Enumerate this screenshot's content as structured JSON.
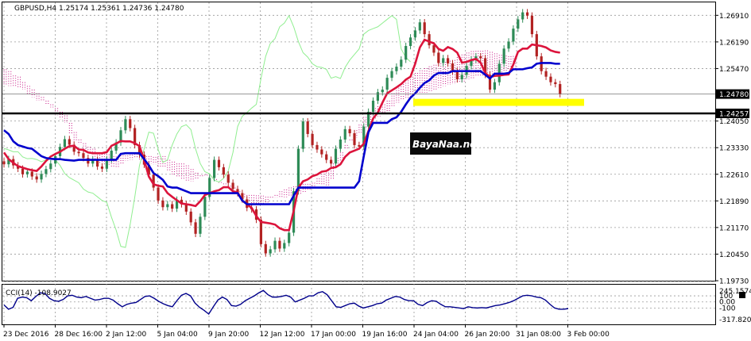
{
  "window": {
    "symbol_line": "GBPUSD,H4  1.25174 1.25361 1.24736 1.24780"
  },
  "watermark": "BayaNaa.net",
  "indicator": {
    "title": "CCI(14) -108.9027",
    "scale_labels": [
      "245.1574",
      "100",
      "0.00",
      "-100",
      "-317.8207"
    ]
  },
  "colors": {
    "background": "#ffffff",
    "grid": "#9a9a9a",
    "bull_candle": "#2e8b57",
    "bear_candle": "#b22222",
    "tenkan": "#dc143c",
    "kijun": "#0000cd",
    "chikou": "#90ee90",
    "kumo": "#c71585",
    "support_zone": "#ffff00",
    "price_tag_bg": "#000000",
    "cci_line": "#00008b"
  },
  "chart_data": {
    "type": "candlestick",
    "title": "GBPUSD,H4",
    "open": 1.25174,
    "high": 1.25361,
    "low": 1.24736,
    "close": 1.2478,
    "y_ticks": [
      "1.26910",
      "1.26190",
      "1.25470",
      "1.24780",
      "1.24257",
      "1.24050",
      "1.23330",
      "1.22610",
      "1.21890",
      "1.21170",
      "1.20450",
      "1.19730"
    ],
    "ylim": [
      1.1973,
      1.2726
    ],
    "x_ticks": [
      "23 Dec 2016",
      "28 Dec 16:00",
      "2 Jan 12:00",
      "5 Jan 04:00",
      "9 Jan 20:00",
      "12 Jan 12:00",
      "17 Jan 00:00",
      "19 Jan 16:00",
      "24 Jan 04:00",
      "26 Jan 20:00",
      "31 Jan 08:00",
      "3 Feb 00:00"
    ],
    "current_price": 1.2478,
    "horizontal_level": 1.24257,
    "close_series": [
      1.2288,
      1.2302,
      1.2285,
      1.2276,
      1.2261,
      1.2268,
      1.2255,
      1.2247,
      1.2262,
      1.2275,
      1.229,
      1.231,
      1.2335,
      1.2356,
      1.2341,
      1.2322,
      1.2318,
      1.2305,
      1.229,
      1.23,
      1.2282,
      1.2276,
      1.2301,
      1.2325,
      1.2347,
      1.238,
      1.241,
      1.2386,
      1.234,
      1.2314,
      1.2287,
      1.226,
      1.2225,
      1.219,
      1.2172,
      1.218,
      1.2168,
      1.2192,
      1.218,
      1.216,
      1.2131,
      1.21,
      1.2146,
      1.22,
      1.2251,
      1.23,
      1.228,
      1.226,
      1.2238,
      1.2221,
      1.221,
      1.2193,
      1.217,
      1.2166,
      1.2138,
      1.2072,
      1.2047,
      1.2058,
      1.2081,
      1.206,
      1.2075,
      1.2103,
      1.2215,
      1.233,
      1.2404,
      1.237,
      1.234,
      1.2328,
      1.2315,
      1.23,
      1.229,
      1.233,
      1.2355,
      1.2383,
      1.2372,
      1.234,
      1.2336,
      1.239,
      1.243,
      1.246,
      1.2483,
      1.249,
      1.2522,
      1.254,
      1.2552,
      1.2571,
      1.2608,
      1.2631,
      1.265,
      1.2672,
      1.264,
      1.261,
      1.259,
      1.2562,
      1.2575,
      1.2561,
      1.254,
      1.2518,
      1.253,
      1.2554,
      1.2571,
      1.258,
      1.2575,
      1.253,
      1.249,
      1.251,
      1.256,
      1.2601,
      1.262,
      1.2655,
      1.268,
      1.2699,
      1.269,
      1.264,
      1.258,
      1.254,
      1.2525,
      1.251,
      1.2505,
      1.2478
    ],
    "tenkan_series": [
      1.232,
      1.2302,
      1.2292,
      1.2283,
      1.2279,
      1.2275,
      1.2272,
      1.227,
      1.2282,
      1.2297,
      1.2309,
      1.2316,
      1.2322,
      1.233,
      1.2337,
      1.2338,
      1.2328,
      1.2327,
      1.232,
      1.2318,
      1.2318,
      1.2318,
      1.2321,
      1.2338,
      1.2344,
      1.2351,
      1.235,
      1.235,
      1.2345,
      1.2337,
      1.23,
      1.2255,
      1.2234,
      1.223,
      1.2228,
      1.221,
      1.22,
      1.2191,
      1.2182,
      1.218,
      1.2178,
      1.2175,
      1.2188,
      1.2205,
      1.221,
      1.2215,
      1.2218,
      1.2226,
      1.2226,
      1.2215,
      1.2212,
      1.219,
      1.218,
      1.217,
      1.2148,
      1.2132,
      1.213,
      1.2128,
      1.2125,
      1.2115,
      1.211,
      1.211,
      1.2162,
      1.2225,
      1.2242,
      1.2247,
      1.2256,
      1.226,
      1.2268,
      1.227,
      1.2278,
      1.228,
      1.2288,
      1.2308,
      1.232,
      1.2325,
      1.233,
      1.2344,
      1.2378,
      1.2412,
      1.2428,
      1.2455,
      1.248,
      1.2488,
      1.2496,
      1.2505,
      1.2517,
      1.2525,
      1.256,
      1.2604,
      1.2625,
      1.262,
      1.2615,
      1.26,
      1.2595,
      1.2605,
      1.26,
      1.259,
      1.2563,
      1.2565,
      1.257,
      1.2573,
      1.2563,
      1.2535,
      1.2524,
      1.2527,
      1.2528,
      1.253,
      1.2531,
      1.2558,
      1.2592,
      1.2601,
      1.2601,
      1.2612,
      1.261,
      1.2608,
      1.2604,
      1.2596,
      1.2592,
      1.259
    ],
    "kijun_series": [
      1.238,
      1.237,
      1.235,
      1.234,
      1.2336,
      1.2332,
      1.233,
      1.232,
      1.231,
      1.2305,
      1.2303,
      1.2302,
      1.2302,
      1.23,
      1.2299,
      1.2298,
      1.23,
      1.23,
      1.23,
      1.23,
      1.23,
      1.23,
      1.23,
      1.23,
      1.23,
      1.2316,
      1.2318,
      1.2318,
      1.2318,
      1.2318,
      1.2302,
      1.2285,
      1.2264,
      1.2256,
      1.2246,
      1.2228,
      1.2225,
      1.2225,
      1.222,
      1.2215,
      1.221,
      1.221,
      1.221,
      1.221,
      1.221,
      1.221,
      1.221,
      1.221,
      1.221,
      1.221,
      1.221,
      1.219,
      1.218,
      1.218,
      1.218,
      1.218,
      1.218,
      1.218,
      1.218,
      1.218,
      1.218,
      1.218,
      1.2203,
      1.2225,
      1.2225,
      1.2225,
      1.2225,
      1.2225,
      1.2225,
      1.2225,
      1.2225,
      1.2225,
      1.2225,
      1.2225,
      1.2225,
      1.2225,
      1.2242,
      1.231,
      1.2375,
      1.24,
      1.24,
      1.24,
      1.24,
      1.241,
      1.2415,
      1.243,
      1.245,
      1.2468,
      1.248,
      1.2495,
      1.2508,
      1.2515,
      1.2528,
      1.2535,
      1.2535,
      1.2535,
      1.254,
      1.254,
      1.254,
      1.254,
      1.254,
      1.254,
      1.254,
      1.253,
      1.252,
      1.2533,
      1.2533,
      1.2533,
      1.2535,
      1.2545,
      1.2545,
      1.2545,
      1.2548,
      1.255,
      1.256,
      1.2562,
      1.2562,
      1.2562,
      1.256,
      1.256
    ],
    "chikou_series": [
      1.2331,
      1.2327,
      1.2322,
      1.2322,
      1.2308,
      1.2303,
      1.2304,
      1.2301,
      1.2295,
      1.23,
      1.2305,
      1.23,
      1.2285,
      1.2263,
      1.2252,
      1.2245,
      1.2238,
      1.2221,
      1.2213,
      1.221,
      1.22,
      1.219,
      1.2185,
      1.2145,
      1.211,
      1.2066,
      1.2063,
      1.2125,
      1.22,
      1.2285,
      1.233,
      1.2375,
      1.2372,
      1.2328,
      1.2293,
      1.23,
      1.234,
      1.237,
      1.239,
      1.2395,
      1.2382,
      1.233,
      1.229,
      1.2268,
      1.2262,
      1.2245,
      1.224,
      1.225,
      1.227,
      1.232,
      1.239,
      1.2418,
      1.2428,
      1.244,
      1.245,
      1.252,
      1.258,
      1.2615,
      1.2628,
      1.266,
      1.267,
      1.269,
      1.266,
      1.262,
      1.259,
      1.2578,
      1.256,
      1.2552,
      1.255,
      1.2545,
      1.2521,
      1.2525,
      1.252,
      1.255,
      1.257,
      1.2585,
      1.26,
      1.264,
      1.265,
      1.2655,
      1.266,
      1.267,
      1.268,
      1.269,
      1.268,
      1.26,
      1.2577,
      1.2565
    ],
    "kumo_a_series": [
      1.2545,
      1.254,
      1.2528,
      1.2525,
      1.251,
      1.25,
      1.249,
      1.248,
      1.247,
      1.246,
      1.245,
      1.244,
      1.243,
      1.242,
      1.24,
      1.2375,
      1.2355,
      1.2345,
      1.2335,
      1.233,
      1.232,
      1.2316,
      1.2315,
      1.231,
      1.2309,
      1.2312,
      1.2318,
      1.232,
      1.2316,
      1.2316,
      1.231,
      1.231,
      1.2308,
      1.231,
      1.231,
      1.23,
      1.2295,
      1.229,
      1.229,
      1.2285,
      1.2275,
      1.2265,
      1.2258,
      1.2255,
      1.2252,
      1.2248,
      1.224,
      1.2236,
      1.223,
      1.2225,
      1.2215,
      1.2208,
      1.2205,
      1.2205,
      1.2204,
      1.2203,
      1.22,
      1.22,
      1.2198,
      1.2198,
      1.2199,
      1.22,
      1.2203,
      1.2208,
      1.2212,
      1.222,
      1.222,
      1.2232,
      1.223,
      1.2225,
      1.2245,
      1.228,
      1.2298,
      1.233,
      1.2355,
      1.238,
      1.2395,
      1.2416,
      1.243,
      1.244,
      1.2445,
      1.245,
      1.246,
      1.248,
      1.2495,
      1.2505,
      1.2515,
      1.2525,
      1.2535,
      1.2542,
      1.2548,
      1.2553,
      1.2557,
      1.2561,
      1.2565,
      1.2568,
      1.257,
      1.2578,
      1.2585,
      1.259,
      1.2594,
      1.2595,
      1.2595,
      1.2596,
      1.2592,
      1.2588,
      1.2584,
      1.2582,
      1.258,
      1.2581
    ],
    "kumo_b_series": [
      1.25,
      1.25,
      1.25,
      1.2497,
      1.249,
      1.2478,
      1.247,
      1.246,
      1.2458,
      1.245,
      1.2442,
      1.242,
      1.241,
      1.24,
      1.237,
      1.235,
      1.2342,
      1.233,
      1.232,
      1.23,
      1.229,
      1.2288,
      1.2284,
      1.2282,
      1.228,
      1.229,
      1.2298,
      1.23,
      1.2305,
      1.2298,
      1.2296,
      1.229,
      1.2288,
      1.2282,
      1.228,
      1.227,
      1.226,
      1.2252,
      1.2245,
      1.224,
      1.2242,
      1.225,
      1.2255,
      1.226,
      1.2255,
      1.2245,
      1.2238,
      1.2232,
      1.2226,
      1.2222,
      1.2208,
      1.2198,
      1.219,
      1.2182,
      1.2178,
      1.218,
      1.2185,
      1.2195,
      1.2205,
      1.2215,
      1.222,
      1.2225,
      1.2228,
      1.223,
      1.2235,
      1.2235,
      1.2238,
      1.225,
      1.2262,
      1.2272,
      1.229,
      1.2305,
      1.232,
      1.234,
      1.235,
      1.236,
      1.2372,
      1.2388,
      1.24,
      1.241,
      1.2418,
      1.2425,
      1.243,
      1.2442,
      1.2455,
      1.2462,
      1.2468,
      1.2472,
      1.2478,
      1.248,
      1.2482,
      1.2485,
      1.249,
      1.2495,
      1.25,
      1.2503,
      1.2505,
      1.2509,
      1.2512,
      1.2518,
      1.252,
      1.2525,
      1.2528,
      1.253,
      1.2532,
      1.2535,
      1.2537,
      1.254,
      1.2542,
      1.2545
    ],
    "cci_series": [
      -50,
      -120,
      -90,
      60,
      80,
      70,
      20,
      90,
      150,
      140,
      60,
      20,
      10,
      40,
      100,
      110,
      80,
      70,
      90,
      60,
      30,
      40,
      60,
      60,
      30,
      -30,
      -80,
      -40,
      -20,
      -10,
      40,
      90,
      100,
      60,
      10,
      -30,
      -60,
      -80,
      20,
      110,
      140,
      100,
      -20,
      -90,
      -140,
      -200,
      -80,
      30,
      80,
      40,
      -60,
      -70,
      -40,
      20,
      60,
      100,
      150,
      190,
      120,
      80,
      80,
      90,
      110,
      80,
      0,
      30,
      60,
      100,
      100,
      150,
      170,
      120,
      20,
      -80,
      -90,
      -60,
      -30,
      -20,
      -70,
      -100,
      -80,
      -60,
      -30,
      -20,
      30,
      60,
      90,
      80,
      40,
      20,
      20,
      -40,
      -60,
      -10,
      20,
      10,
      -40,
      -80,
      -80,
      -90,
      -100,
      -110,
      -80,
      -95,
      -100,
      -95,
      -100,
      -80,
      -60,
      -50,
      -30,
      -10,
      20,
      60,
      100,
      110,
      100,
      80,
      70,
      30,
      -40,
      -100,
      -120,
      -120,
      -110
    ]
  }
}
